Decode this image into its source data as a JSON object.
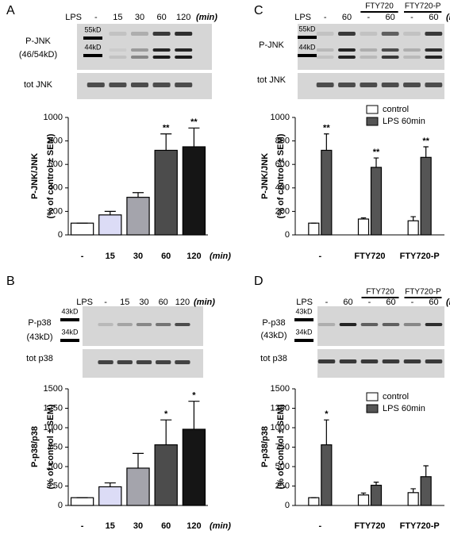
{
  "chart_data": [
    {
      "type": "bar",
      "panel": "A",
      "ylabel": "P-JNK/JNK",
      "ylabel_note": "(% of control ± SEM)",
      "x_unit": "(min)",
      "categories": [
        "-",
        "15",
        "30",
        "60",
        "120"
      ],
      "values": [
        100,
        170,
        320,
        720,
        750
      ],
      "errors": [
        0,
        30,
        40,
        140,
        160
      ],
      "value_annotations": [
        null,
        null,
        null,
        "**",
        "**"
      ],
      "colors": [
        "#ffffff",
        "#dcdcf6",
        "#a4a4ac",
        "#4c4c4c",
        "#151515"
      ],
      "ylim": [
        0,
        1000
      ],
      "yticks": [
        0,
        200,
        400,
        600,
        800,
        1000
      ],
      "blot": {
        "treatment": "LPS",
        "markers": [
          "55kD",
          "44kD"
        ],
        "rows": [
          "P-JNK",
          "tot JNK"
        ],
        "row_note": "(46/54kD)"
      }
    },
    {
      "type": "bar",
      "panel": "B",
      "ylabel": "P-p38/p38",
      "ylabel_note": "(% of control ± SEM)",
      "x_unit": "(min)",
      "categories": [
        "-",
        "15",
        "30",
        "60",
        "120"
      ],
      "values": [
        100,
        240,
        480,
        780,
        980
      ],
      "errors": [
        0,
        50,
        190,
        320,
        360
      ],
      "value_annotations": [
        null,
        null,
        null,
        "*",
        "*"
      ],
      "colors": [
        "#ffffff",
        "#dcdcf6",
        "#a4a4ac",
        "#4c4c4c",
        "#151515"
      ],
      "ylim": [
        0,
        1500
      ],
      "yticks": [
        0,
        250,
        500,
        750,
        1000,
        1250,
        1500
      ],
      "blot": {
        "treatment": "LPS",
        "markers": [
          "43kD",
          "34kD"
        ],
        "rows": [
          "P-p38",
          "tot p38"
        ],
        "row_note": "(43kD)"
      }
    },
    {
      "type": "bar",
      "panel": "C",
      "ylabel": "P-JNK/JNK",
      "ylabel_note": "(% of control ± SEM)",
      "categories": [
        "-",
        "FTY720",
        "FTY720-P"
      ],
      "series": [
        {
          "name": "control",
          "color": "#ffffff",
          "values": [
            100,
            135,
            120
          ],
          "errors": [
            0,
            10,
            35
          ],
          "value_annotations": [
            null,
            null,
            null
          ]
        },
        {
          "name": "LPS 60min",
          "color": "#555555",
          "values": [
            720,
            575,
            660
          ],
          "errors": [
            140,
            80,
            90
          ],
          "value_annotations": [
            "**",
            "**",
            "**"
          ]
        }
      ],
      "ylim": [
        0,
        1000
      ],
      "yticks": [
        0,
        200,
        400,
        600,
        800,
        1000
      ],
      "blot": {
        "treatment": "LPS",
        "lanes": [
          "-",
          "60",
          "-",
          "60",
          "-",
          "60"
        ],
        "unit": "(min)",
        "markers": [
          "55kD",
          "44kD"
        ],
        "rows": [
          "P-JNK",
          "tot JNK"
        ]
      }
    },
    {
      "type": "bar",
      "panel": "D",
      "ylabel": "P-p38/p38",
      "ylabel_note": "(% of control ± SEM)",
      "categories": [
        "-",
        "FTY720",
        "FTY720-P"
      ],
      "series": [
        {
          "name": "control",
          "color": "#ffffff",
          "values": [
            100,
            135,
            165
          ],
          "errors": [
            0,
            25,
            50
          ],
          "value_annotations": [
            null,
            null,
            null
          ]
        },
        {
          "name": "LPS 60min",
          "color": "#555555",
          "values": [
            780,
            260,
            370
          ],
          "errors": [
            320,
            40,
            140
          ],
          "value_annotations": [
            "*",
            null,
            null
          ]
        }
      ],
      "ylim": [
        0,
        1500
      ],
      "yticks": [
        0,
        250,
        500,
        750,
        1000,
        1250,
        1500
      ],
      "blot": {
        "treatment": "LPS",
        "lanes": [
          "-",
          "60",
          "-",
          "60",
          "-",
          "60"
        ],
        "unit": "(min)",
        "markers": [
          "43kD",
          "34kD"
        ],
        "rows": [
          "P-p38",
          "tot p38"
        ],
        "row_note": "(43kD)"
      }
    }
  ]
}
